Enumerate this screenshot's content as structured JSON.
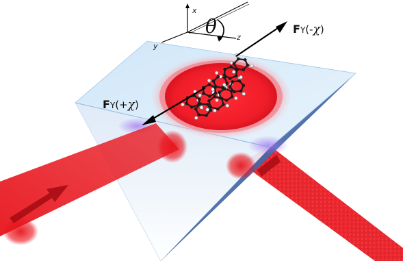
{
  "axes": {
    "x": "x",
    "y": "y",
    "z": "z"
  },
  "angle_symbol": "θ",
  "force_labels": {
    "plus": {
      "prefix": "F",
      "sub": "Y",
      "paren": "(+",
      "chi": "χ",
      "close": ")"
    },
    "minus": {
      "prefix": "F",
      "sub": "Y",
      "paren": "(-",
      "chi": "χ",
      "close": ")"
    }
  },
  "colors": {
    "laser": "#e8141c",
    "prism_light": "#dff0fb",
    "prism_edge": "#8fbde0",
    "prism_shadow": "#3d5f9e",
    "carbon": "#1b1b1b",
    "hydrogen": "#f2f2f2",
    "interface_glow": "#9b6cf0"
  },
  "icons": [
    "coordinate-axes-icon",
    "molecule-icon",
    "arrow-icon"
  ]
}
